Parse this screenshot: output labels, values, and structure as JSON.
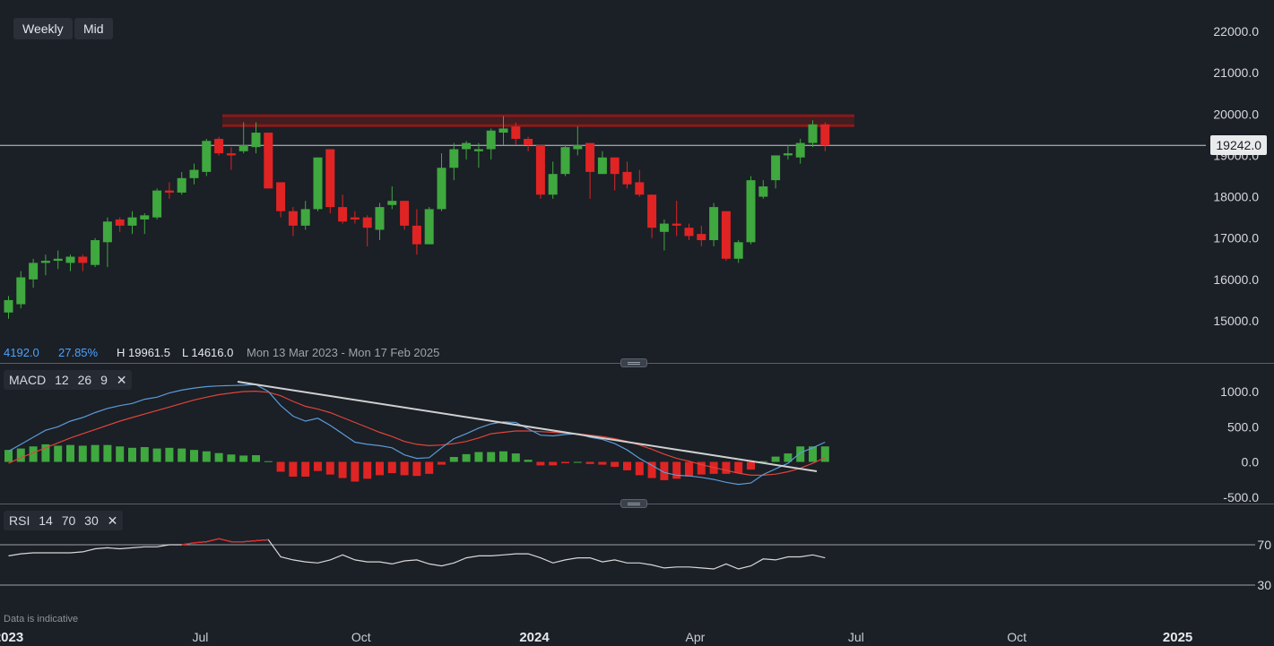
{
  "toolbar": {
    "interval": "Weekly",
    "price_type": "Mid"
  },
  "stats": {
    "change": "4192.0",
    "change_pct": "27.85%",
    "high": "H 19961.5",
    "low": "L 14616.0",
    "range": "Mon 13 Mar 2023 - Mon 17 Feb 2025"
  },
  "current_price": "19242.0",
  "macd": {
    "name": "MACD",
    "p1": "12",
    "p2": "26",
    "p3": "9"
  },
  "rsi": {
    "name": "RSI",
    "p1": "14",
    "p2": "70",
    "p3": "30"
  },
  "disclaimer": "Data is indicative",
  "colors": {
    "up": "#3fa83f",
    "down": "#e02424",
    "macd_line": "#5b9bd5",
    "signal_line": "#e0443a",
    "resistance": "#8b1a1a",
    "trendline": "#d0d0d0",
    "rsi_line": "#d8d8d8",
    "rsi_overbought": "#e02424"
  },
  "chart_data": [
    {
      "type": "candlestick",
      "title": "",
      "y_ticks": [
        "22000.0",
        "21000.0",
        "20000.0",
        "19000.0",
        "18000.0",
        "17000.0",
        "16000.0",
        "15000.0"
      ],
      "ylim": [
        14700,
        22400
      ],
      "x_ticks": [
        "2023",
        "Jul",
        "Oct",
        "2024",
        "Apr",
        "Jul",
        "Oct",
        "2025"
      ],
      "x_tick_weeks": [
        0,
        15.5,
        28.5,
        42.5,
        55.5,
        68.5,
        81.5,
        94.5
      ],
      "current_price": 19242.0,
      "resistance_band": [
        19720,
        19960
      ],
      "ohlc": [
        [
          15200,
          15600,
          15050,
          15500
        ],
        [
          15400,
          16200,
          15300,
          16050
        ],
        [
          16000,
          16500,
          15800,
          16400
        ],
        [
          16400,
          16600,
          16100,
          16450
        ],
        [
          16450,
          16700,
          16250,
          16500
        ],
        [
          16400,
          16600,
          16200,
          16550
        ],
        [
          16550,
          16600,
          16200,
          16400
        ],
        [
          16350,
          17000,
          16300,
          16950
        ],
        [
          16900,
          17500,
          16300,
          17400
        ],
        [
          17450,
          17500,
          17150,
          17300
        ],
        [
          17300,
          17650,
          17100,
          17500
        ],
        [
          17450,
          17600,
          17100,
          17550
        ],
        [
          17500,
          18200,
          17450,
          18150
        ],
        [
          18150,
          18350,
          17950,
          18100
        ],
        [
          18100,
          18600,
          18050,
          18450
        ],
        [
          18450,
          18800,
          18300,
          18650
        ],
        [
          18600,
          19400,
          18500,
          19350
        ],
        [
          19400,
          19450,
          19000,
          19050
        ],
        [
          19050,
          19200,
          18650,
          19000
        ],
        [
          19100,
          19800,
          19050,
          19250
        ],
        [
          19200,
          19800,
          19050,
          19550
        ],
        [
          19550,
          19550,
          18200,
          18200
        ],
        [
          18350,
          18350,
          17500,
          17650
        ],
        [
          17650,
          17750,
          17050,
          17300
        ],
        [
          17300,
          17900,
          17200,
          17700
        ],
        [
          17700,
          18950,
          17650,
          18950
        ],
        [
          19150,
          19150,
          17600,
          17750
        ],
        [
          17750,
          18050,
          17350,
          17400
        ],
        [
          17500,
          17650,
          17350,
          17450
        ],
        [
          17500,
          17550,
          16800,
          17250
        ],
        [
          17200,
          17850,
          16950,
          17750
        ],
        [
          17800,
          18250,
          17700,
          17900
        ],
        [
          17900,
          17900,
          17200,
          17300
        ],
        [
          17300,
          17700,
          16600,
          16850
        ],
        [
          16850,
          17750,
          16850,
          17700
        ],
        [
          17700,
          19050,
          17650,
          18700
        ],
        [
          18700,
          19300,
          18400,
          19150
        ],
        [
          19150,
          19350,
          18900,
          19300
        ],
        [
          19100,
          19300,
          18700,
          19150
        ],
        [
          19150,
          19650,
          18900,
          19600
        ],
        [
          19550,
          19950,
          19250,
          19650
        ],
        [
          19700,
          19800,
          19250,
          19400
        ],
        [
          19400,
          19450,
          19100,
          19250
        ],
        [
          19250,
          19250,
          17950,
          18050
        ],
        [
          18050,
          18850,
          17950,
          18550
        ],
        [
          18550,
          19250,
          18500,
          19200
        ],
        [
          19150,
          19700,
          19000,
          19250
        ],
        [
          19300,
          19250,
          17950,
          18600
        ],
        [
          18550,
          19100,
          18550,
          18950
        ],
        [
          18950,
          18950,
          18150,
          18550
        ],
        [
          18600,
          18850,
          18200,
          18300
        ],
        [
          18350,
          18650,
          18000,
          18050
        ],
        [
          18050,
          18050,
          17000,
          17250
        ],
        [
          17150,
          17450,
          16700,
          17350
        ],
        [
          17350,
          17900,
          17050,
          17300
        ],
        [
          17250,
          17350,
          16950,
          17050
        ],
        [
          17100,
          17300,
          16800,
          16950
        ],
        [
          16950,
          17850,
          16800,
          17750
        ],
        [
          17650,
          17650,
          16450,
          16500
        ],
        [
          16500,
          16950,
          16400,
          16900
        ],
        [
          16900,
          18500,
          16850,
          18400
        ],
        [
          18000,
          18400,
          17950,
          18250
        ],
        [
          18400,
          19000,
          18200,
          19000
        ],
        [
          19000,
          19250,
          18900,
          19050
        ],
        [
          18950,
          19400,
          18800,
          19300
        ],
        [
          19300,
          19850,
          19200,
          19750
        ],
        [
          19750,
          19800,
          19100,
          19242
        ]
      ]
    },
    {
      "type": "line+bar",
      "title": "MACD",
      "y_ticks": [
        "1000.0",
        "500.0",
        "0.0",
        "-500.0"
      ],
      "ylim": [
        -600,
        1100
      ],
      "macd": [
        150,
        250,
        350,
        450,
        500,
        580,
        630,
        700,
        760,
        800,
        830,
        890,
        920,
        980,
        1020,
        1050,
        1070,
        1080,
        1085,
        1090,
        1100,
        1000,
        800,
        650,
        580,
        620,
        520,
        400,
        280,
        250,
        230,
        200,
        100,
        50,
        60,
        200,
        330,
        400,
        480,
        540,
        570,
        560,
        470,
        380,
        370,
        390,
        400,
        350,
        320,
        260,
        170,
        50,
        -50,
        -150,
        -190,
        -200,
        -220,
        -250,
        -290,
        -320,
        -300,
        -180,
        -100,
        -20,
        130,
        200,
        280
      ],
      "signal": [
        -20,
        60,
        130,
        200,
        270,
        340,
        400,
        460,
        520,
        580,
        630,
        680,
        730,
        780,
        830,
        880,
        920,
        955,
        980,
        1000,
        1005,
        990,
        940,
        860,
        790,
        750,
        700,
        630,
        560,
        490,
        420,
        360,
        290,
        250,
        230,
        240,
        260,
        290,
        340,
        400,
        420,
        440,
        440,
        430,
        420,
        410,
        400,
        380,
        360,
        330,
        290,
        240,
        180,
        110,
        50,
        10,
        -40,
        -80,
        -120,
        -160,
        -190,
        -190,
        -175,
        -140,
        -90,
        -20,
        60
      ],
      "histogram": [
        170,
        190,
        220,
        250,
        230,
        240,
        230,
        240,
        240,
        220,
        200,
        210,
        190,
        200,
        190,
        170,
        150,
        125,
        105,
        90,
        95,
        10,
        -140,
        -210,
        -210,
        -130,
        -180,
        -230,
        -280,
        -240,
        -190,
        -160,
        -190,
        -200,
        -170,
        -40,
        70,
        110,
        140,
        140,
        150,
        120,
        30,
        -50,
        -50,
        -20,
        0,
        -30,
        -40,
        -70,
        -120,
        -190,
        -230,
        -260,
        -240,
        -210,
        -180,
        -170,
        -170,
        -160,
        -110,
        10,
        75,
        120,
        220,
        220,
        220
      ]
    },
    {
      "type": "line",
      "title": "RSI",
      "y_ticks": [
        "70",
        "30"
      ],
      "ylim": [
        20,
        83
      ],
      "rsi": [
        59,
        61,
        62,
        62,
        62,
        62,
        63,
        66,
        67,
        66,
        67,
        68,
        68,
        70,
        70,
        72,
        73,
        76,
        73,
        73,
        74,
        75,
        58,
        55,
        53,
        52,
        55,
        60,
        55,
        53,
        53,
        51,
        54,
        55,
        51,
        49,
        52,
        57,
        59,
        59,
        60,
        61,
        61,
        57,
        52,
        55,
        57,
        57,
        53,
        55,
        52,
        52,
        50,
        47,
        48,
        48,
        47,
        46,
        51,
        46,
        49,
        56,
        55,
        58,
        58,
        60,
        57
      ]
    }
  ]
}
